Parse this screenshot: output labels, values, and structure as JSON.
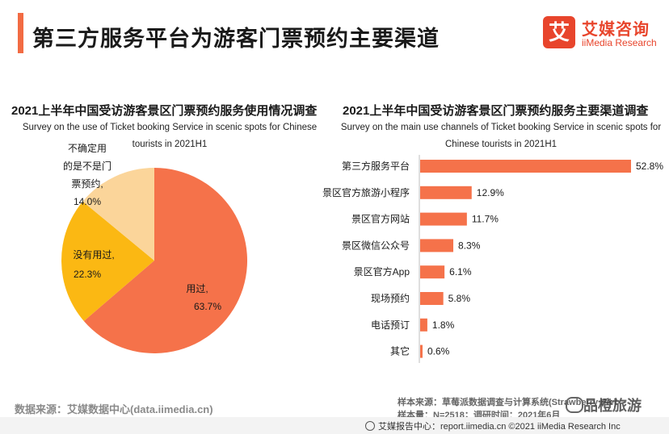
{
  "header": {
    "title": "第三方服务平台为游客门票预约主要渠道",
    "logo_mark": "艾",
    "logo_cn": "艾媒咨询",
    "logo_en": "iiMedia Research"
  },
  "chart_data": [
    {
      "type": "pie",
      "title": "2021上半年中国受访游客景区门票预约服务使用情况调查",
      "subtitle": "Survey on the use of Ticket booking Service in scenic spots for Chinese tourists in 2021H1",
      "slices": [
        {
          "label": "用过,",
          "value": 63.7,
          "value_label": "63.7%",
          "color": "#f5724a"
        },
        {
          "label": "没有用过,",
          "value": 22.3,
          "value_label": "22.3%",
          "color": "#fbb813"
        },
        {
          "label": "不确定用的是不是门票预约,",
          "value": 14.0,
          "value_label": "14.0%",
          "color": "#fbd59a"
        }
      ]
    },
    {
      "type": "bar",
      "orientation": "horizontal",
      "title": "2021上半年中国受访游客景区门票预约服务主要渠道调查",
      "subtitle": "Survey on the main use channels of  Ticket booking Service  in scenic spots for Chinese tourists in 2021H1",
      "categories": [
        "第三方服务平台",
        "景区官方旅游小程序",
        "景区官方网站",
        "景区微信公众号",
        "景区官方App",
        "现场预约",
        "电话预订",
        "其它"
      ],
      "values": [
        52.8,
        12.9,
        11.7,
        8.3,
        6.1,
        5.8,
        1.8,
        0.6
      ],
      "value_labels": [
        "52.8%",
        "12.9%",
        "11.7%",
        "8.3%",
        "6.1%",
        "5.8%",
        "1.8%",
        "0.6%"
      ],
      "color": "#f5724a"
    }
  ],
  "footer": {
    "source_left": "数据来源：艾媒数据中心(data.iimedia.cn)",
    "sample_source": "样本来源：草莓派数据调查与计算系统(Strawberry Pie)",
    "sample_size": "样本量：N=2518；调研时间：2021年6月",
    "watermark": "品橙旅游",
    "report_line": "艾媒报告中心：report.iimedia.cn     ©2021  iiMedia Research  Inc"
  }
}
